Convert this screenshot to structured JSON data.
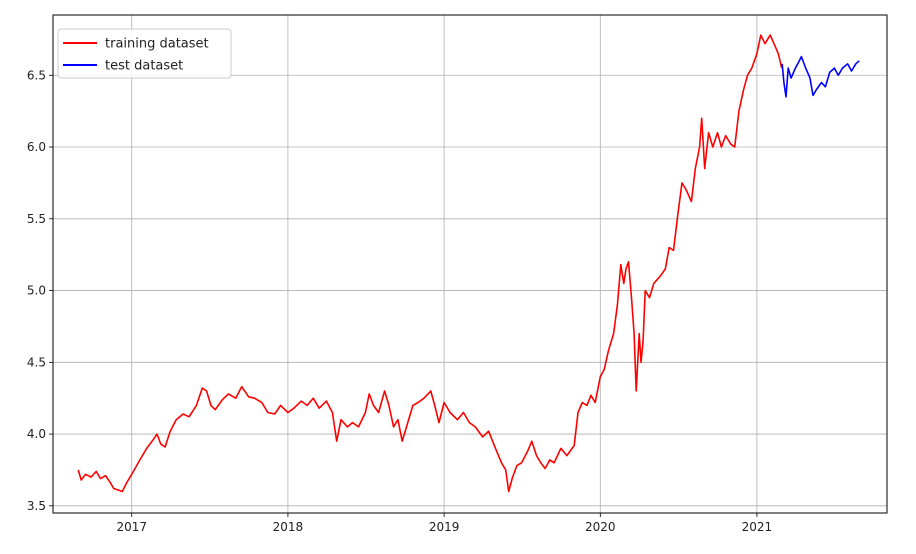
{
  "chart_data": {
    "type": "line",
    "title": "",
    "xlabel": "",
    "ylabel": "",
    "grid": true,
    "legend_position": "top-left",
    "xlim": [
      "2016-07-01",
      "2021-11-01"
    ],
    "ylim": [
      3.45,
      6.92
    ],
    "x_ticks": [
      "2017",
      "2018",
      "2019",
      "2020",
      "2021"
    ],
    "y_ticks": [
      "3.5",
      "4.0",
      "4.5",
      "5.0",
      "5.5",
      "6.0",
      "6.5"
    ],
    "series": [
      {
        "name": "training dataset",
        "color": "#ff0000",
        "points": [
          [
            "2016-08-29",
            3.75
          ],
          [
            "2016-09-05",
            3.68
          ],
          [
            "2016-09-15",
            3.72
          ],
          [
            "2016-09-28",
            3.7
          ],
          [
            "2016-10-10",
            3.74
          ],
          [
            "2016-10-20",
            3.69
          ],
          [
            "2016-11-01",
            3.71
          ],
          [
            "2016-11-10",
            3.67
          ],
          [
            "2016-11-20",
            3.62
          ],
          [
            "2016-11-30",
            3.61
          ],
          [
            "2016-12-10",
            3.6
          ],
          [
            "2016-12-20",
            3.66
          ],
          [
            "2017-01-05",
            3.74
          ],
          [
            "2017-01-20",
            3.82
          ],
          [
            "2017-02-05",
            3.9
          ],
          [
            "2017-02-20",
            3.96
          ],
          [
            "2017-03-01",
            4.0
          ],
          [
            "2017-03-10",
            3.93
          ],
          [
            "2017-03-20",
            3.91
          ],
          [
            "2017-04-01",
            4.02
          ],
          [
            "2017-04-15",
            4.1
          ],
          [
            "2017-05-01",
            4.14
          ],
          [
            "2017-05-15",
            4.12
          ],
          [
            "2017-06-01",
            4.2
          ],
          [
            "2017-06-15",
            4.32
          ],
          [
            "2017-06-25",
            4.3
          ],
          [
            "2017-07-05",
            4.2
          ],
          [
            "2017-07-15",
            4.17
          ],
          [
            "2017-08-01",
            4.24
          ],
          [
            "2017-08-15",
            4.28
          ],
          [
            "2017-09-01",
            4.25
          ],
          [
            "2017-09-15",
            4.33
          ],
          [
            "2017-10-01",
            4.26
          ],
          [
            "2017-10-15",
            4.25
          ],
          [
            "2017-11-01",
            4.22
          ],
          [
            "2017-11-15",
            4.15
          ],
          [
            "2017-12-01",
            4.14
          ],
          [
            "2017-12-15",
            4.2
          ],
          [
            "2018-01-01",
            4.15
          ],
          [
            "2018-01-15",
            4.18
          ],
          [
            "2018-02-01",
            4.23
          ],
          [
            "2018-02-15",
            4.2
          ],
          [
            "2018-03-01",
            4.25
          ],
          [
            "2018-03-15",
            4.18
          ],
          [
            "2018-04-01",
            4.23
          ],
          [
            "2018-04-15",
            4.15
          ],
          [
            "2018-04-25",
            3.95
          ],
          [
            "2018-05-05",
            4.1
          ],
          [
            "2018-05-20",
            4.05
          ],
          [
            "2018-06-01",
            4.08
          ],
          [
            "2018-06-15",
            4.05
          ],
          [
            "2018-07-01",
            4.15
          ],
          [
            "2018-07-10",
            4.28
          ],
          [
            "2018-07-20",
            4.2
          ],
          [
            "2018-08-01",
            4.15
          ],
          [
            "2018-08-15",
            4.3
          ],
          [
            "2018-08-25",
            4.2
          ],
          [
            "2018-09-05",
            4.05
          ],
          [
            "2018-09-15",
            4.1
          ],
          [
            "2018-09-25",
            3.95
          ],
          [
            "2018-10-05",
            4.05
          ],
          [
            "2018-10-20",
            4.2
          ],
          [
            "2018-11-01",
            4.22
          ],
          [
            "2018-11-15",
            4.25
          ],
          [
            "2018-12-01",
            4.3
          ],
          [
            "2018-12-10",
            4.2
          ],
          [
            "2018-12-20",
            4.08
          ],
          [
            "2019-01-01",
            4.22
          ],
          [
            "2019-01-15",
            4.15
          ],
          [
            "2019-02-01",
            4.1
          ],
          [
            "2019-02-15",
            4.15
          ],
          [
            "2019-03-01",
            4.08
          ],
          [
            "2019-03-15",
            4.05
          ],
          [
            "2019-04-01",
            3.98
          ],
          [
            "2019-04-15",
            4.02
          ],
          [
            "2019-05-01",
            3.9
          ],
          [
            "2019-05-15",
            3.8
          ],
          [
            "2019-05-25",
            3.75
          ],
          [
            "2019-06-01",
            3.6
          ],
          [
            "2019-06-10",
            3.7
          ],
          [
            "2019-06-20",
            3.78
          ],
          [
            "2019-07-01",
            3.8
          ],
          [
            "2019-07-15",
            3.88
          ],
          [
            "2019-07-25",
            3.95
          ],
          [
            "2019-08-05",
            3.85
          ],
          [
            "2019-08-15",
            3.8
          ],
          [
            "2019-08-25",
            3.76
          ],
          [
            "2019-09-05",
            3.82
          ],
          [
            "2019-09-15",
            3.8
          ],
          [
            "2019-10-01",
            3.9
          ],
          [
            "2019-10-15",
            3.85
          ],
          [
            "2019-11-01",
            3.92
          ],
          [
            "2019-11-10",
            4.15
          ],
          [
            "2019-11-20",
            4.22
          ],
          [
            "2019-12-01",
            4.2
          ],
          [
            "2019-12-10",
            4.27
          ],
          [
            "2019-12-20",
            4.22
          ],
          [
            "2020-01-01",
            4.4
          ],
          [
            "2020-01-10",
            4.45
          ],
          [
            "2020-01-20",
            4.58
          ],
          [
            "2020-02-01",
            4.7
          ],
          [
            "2020-02-10",
            4.9
          ],
          [
            "2020-02-18",
            5.18
          ],
          [
            "2020-02-25",
            5.05
          ],
          [
            "2020-03-01",
            5.15
          ],
          [
            "2020-03-07",
            5.2
          ],
          [
            "2020-03-14",
            4.95
          ],
          [
            "2020-03-20",
            4.7
          ],
          [
            "2020-03-25",
            4.3
          ],
          [
            "2020-04-01",
            4.7
          ],
          [
            "2020-04-05",
            4.5
          ],
          [
            "2020-04-10",
            4.65
          ],
          [
            "2020-04-15",
            5.0
          ],
          [
            "2020-04-25",
            4.95
          ],
          [
            "2020-05-05",
            5.05
          ],
          [
            "2020-05-20",
            5.1
          ],
          [
            "2020-06-01",
            5.15
          ],
          [
            "2020-06-10",
            5.3
          ],
          [
            "2020-06-20",
            5.28
          ],
          [
            "2020-07-01",
            5.55
          ],
          [
            "2020-07-10",
            5.75
          ],
          [
            "2020-07-20",
            5.7
          ],
          [
            "2020-08-01",
            5.62
          ],
          [
            "2020-08-10",
            5.85
          ],
          [
            "2020-08-20",
            6.0
          ],
          [
            "2020-08-25",
            6.2
          ],
          [
            "2020-09-01",
            5.85
          ],
          [
            "2020-09-10",
            6.1
          ],
          [
            "2020-09-20",
            6.0
          ],
          [
            "2020-10-01",
            6.1
          ],
          [
            "2020-10-10",
            6.0
          ],
          [
            "2020-10-20",
            6.08
          ],
          [
            "2020-11-01",
            6.02
          ],
          [
            "2020-11-10",
            6.0
          ],
          [
            "2020-11-20",
            6.25
          ],
          [
            "2020-12-01",
            6.4
          ],
          [
            "2020-12-10",
            6.5
          ],
          [
            "2020-12-20",
            6.55
          ],
          [
            "2021-01-01",
            6.65
          ],
          [
            "2021-01-10",
            6.78
          ],
          [
            "2021-01-20",
            6.72
          ],
          [
            "2021-02-01",
            6.78
          ],
          [
            "2021-02-10",
            6.72
          ],
          [
            "2021-02-20",
            6.65
          ],
          [
            "2021-02-28",
            6.55
          ]
        ]
      },
      {
        "name": "test dataset",
        "color": "#0000ff",
        "points": [
          [
            "2021-03-01",
            6.58
          ],
          [
            "2021-03-05",
            6.45
          ],
          [
            "2021-03-10",
            6.35
          ],
          [
            "2021-03-15",
            6.55
          ],
          [
            "2021-03-22",
            6.48
          ],
          [
            "2021-04-01",
            6.55
          ],
          [
            "2021-04-10",
            6.6
          ],
          [
            "2021-04-15",
            6.63
          ],
          [
            "2021-04-25",
            6.55
          ],
          [
            "2021-05-05",
            6.48
          ],
          [
            "2021-05-12",
            6.36
          ],
          [
            "2021-05-20",
            6.4
          ],
          [
            "2021-06-01",
            6.45
          ],
          [
            "2021-06-10",
            6.42
          ],
          [
            "2021-06-20",
            6.52
          ],
          [
            "2021-07-01",
            6.55
          ],
          [
            "2021-07-10",
            6.5
          ],
          [
            "2021-07-20",
            6.55
          ],
          [
            "2021-08-01",
            6.58
          ],
          [
            "2021-08-10",
            6.53
          ],
          [
            "2021-08-20",
            6.58
          ],
          [
            "2021-08-28",
            6.6
          ]
        ]
      }
    ]
  }
}
